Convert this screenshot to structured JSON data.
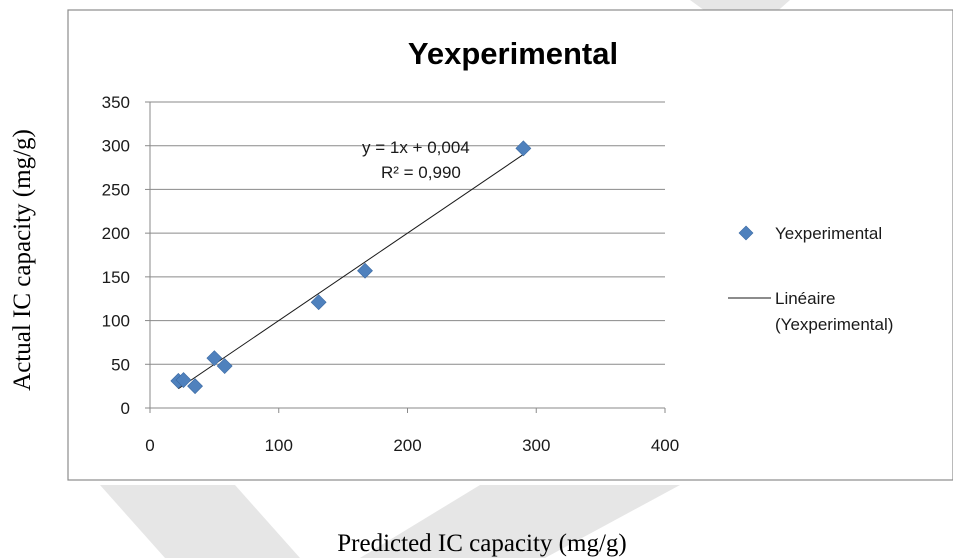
{
  "chart_data": {
    "type": "scatter",
    "title": "Yexperimental",
    "xlabel": "Predicted IC capacity (mg/g)",
    "ylabel": "Actual IC capacity (mg/g)",
    "xlim": [
      0,
      400
    ],
    "ylim": [
      0,
      350
    ],
    "x_ticks": [
      "0",
      "100",
      "200",
      "300",
      "400"
    ],
    "y_ticks": [
      "0",
      "50",
      "100",
      "150",
      "200",
      "250",
      "300",
      "350"
    ],
    "grid": true,
    "legend_position": "right",
    "series": [
      {
        "name": "Yexperimental",
        "marker": "diamond",
        "color": "#4f81bd",
        "points": [
          {
            "x": 22,
            "y": 31
          },
          {
            "x": 26,
            "y": 32
          },
          {
            "x": 35,
            "y": 25
          },
          {
            "x": 50,
            "y": 57
          },
          {
            "x": 58,
            "y": 48
          },
          {
            "x": 131,
            "y": 121
          },
          {
            "x": 167,
            "y": 157
          },
          {
            "x": 290,
            "y": 297
          }
        ]
      }
    ],
    "trendline": {
      "legend_label": "Linéaire (Yexperimental)",
      "legend_lines": [
        "Linéaire",
        "(Yexperimental)"
      ],
      "equation": "y = 1x + 0,004",
      "r_squared": "R² = 0,990",
      "slope": 1,
      "intercept": 0.004,
      "x_range": [
        22,
        290
      ]
    }
  }
}
